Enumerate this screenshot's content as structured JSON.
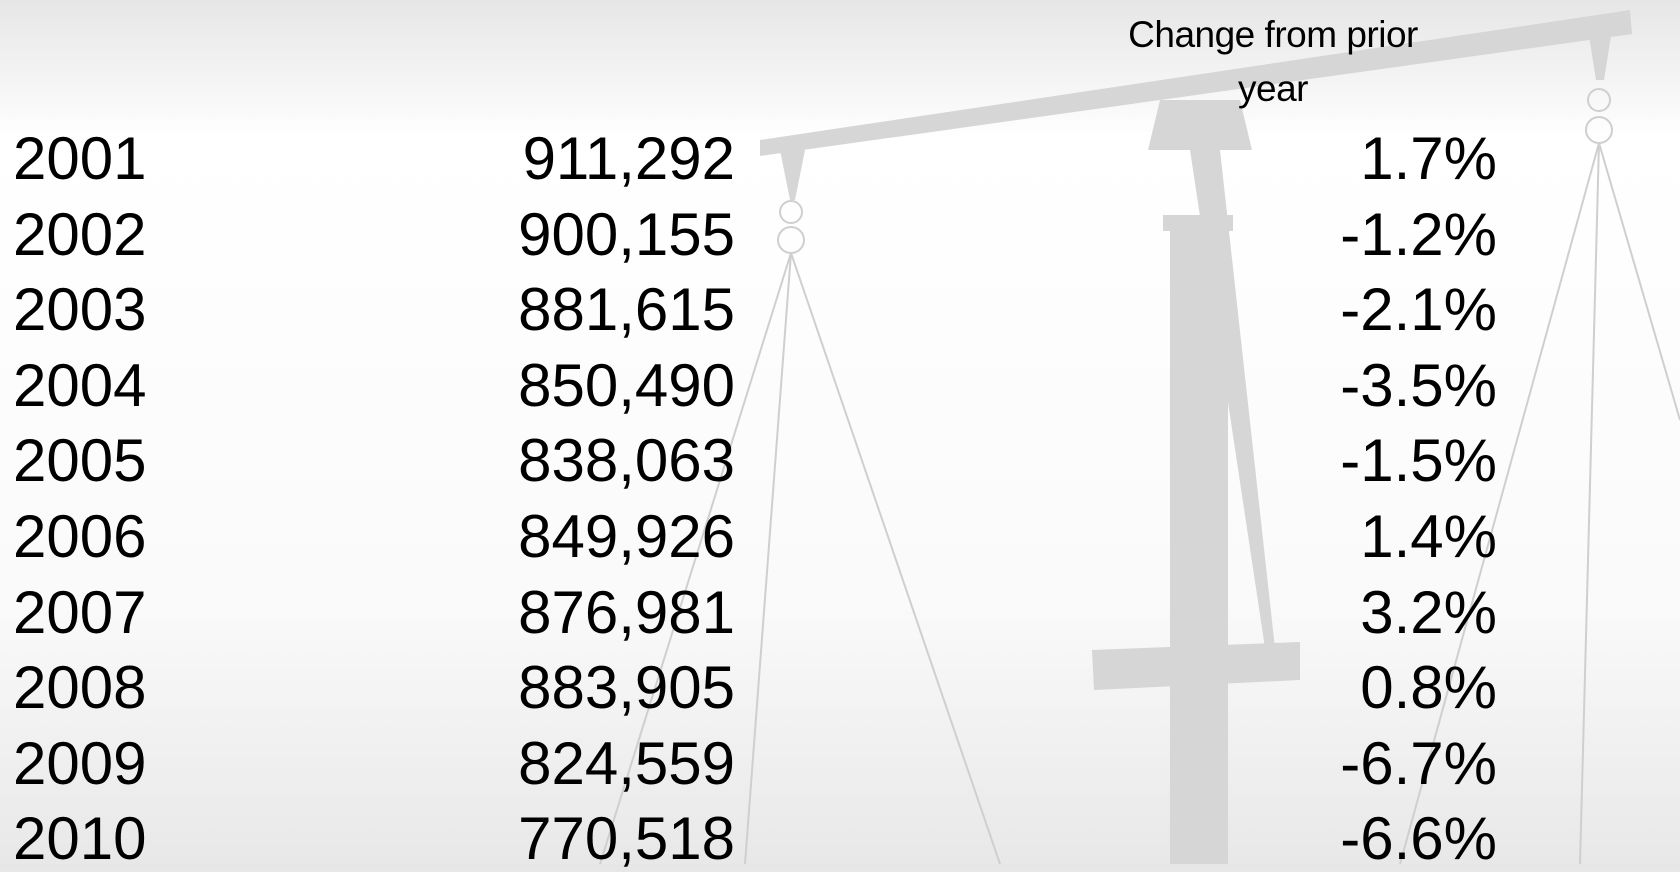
{
  "table": {
    "header": "Change from prior year",
    "rows": [
      [
        "2001",
        "911,292",
        "1.7%"
      ],
      [
        "2002",
        "900,155",
        "-1.2%"
      ],
      [
        "2003",
        "881,615",
        "-2.1%"
      ],
      [
        "2004",
        "850,490",
        "-3.5%"
      ],
      [
        "2005",
        "838,063",
        "-1.5%"
      ],
      [
        "2006",
        "849,926",
        "1.4%"
      ],
      [
        "2007",
        "876,981",
        "3.2%"
      ],
      [
        "2008",
        "883,905",
        "0.8%"
      ],
      [
        "2009",
        "824,559",
        "-6.7%"
      ],
      [
        "2010",
        "770,518",
        "-6.6%"
      ]
    ]
  }
}
